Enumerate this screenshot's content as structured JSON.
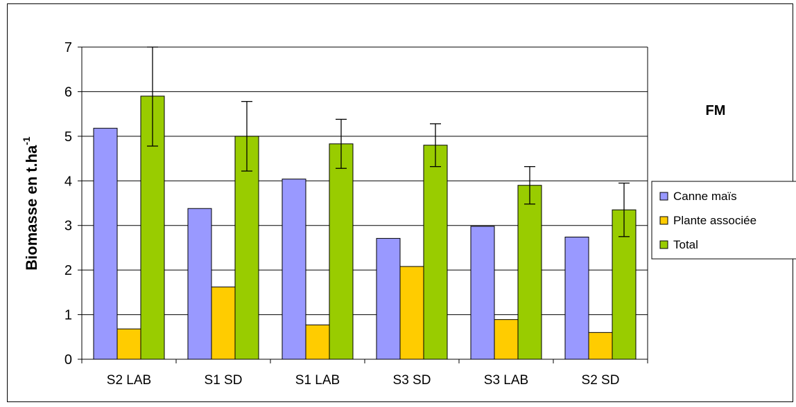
{
  "chart_data": {
    "type": "bar",
    "title": "FM",
    "ylabel": "Biomasse en t.ha",
    "ylabel_superscript": "-1",
    "xlabel": "",
    "ylim": [
      0,
      7
    ],
    "yticks": [
      0,
      1,
      2,
      3,
      4,
      5,
      6,
      7
    ],
    "categories": [
      "S2 LAB",
      "S1 SD",
      "S1 LAB",
      "S3 SD",
      "S3 LAB",
      "S2 SD"
    ],
    "series": [
      {
        "name": "Canne maïs",
        "color": "#9999ff",
        "values": [
          5.18,
          3.38,
          4.04,
          2.71,
          2.98,
          2.74
        ]
      },
      {
        "name": "Plante associée",
        "color": "#ffcc00",
        "values": [
          0.68,
          1.62,
          0.77,
          2.08,
          0.89,
          0.6
        ]
      },
      {
        "name": "Total",
        "color": "#99cc00",
        "values": [
          5.9,
          5.0,
          4.83,
          4.8,
          3.9,
          3.35
        ],
        "error": [
          1.12,
          0.78,
          0.55,
          0.48,
          0.42,
          0.6
        ]
      }
    ],
    "grid": true,
    "legend_position": "right"
  }
}
